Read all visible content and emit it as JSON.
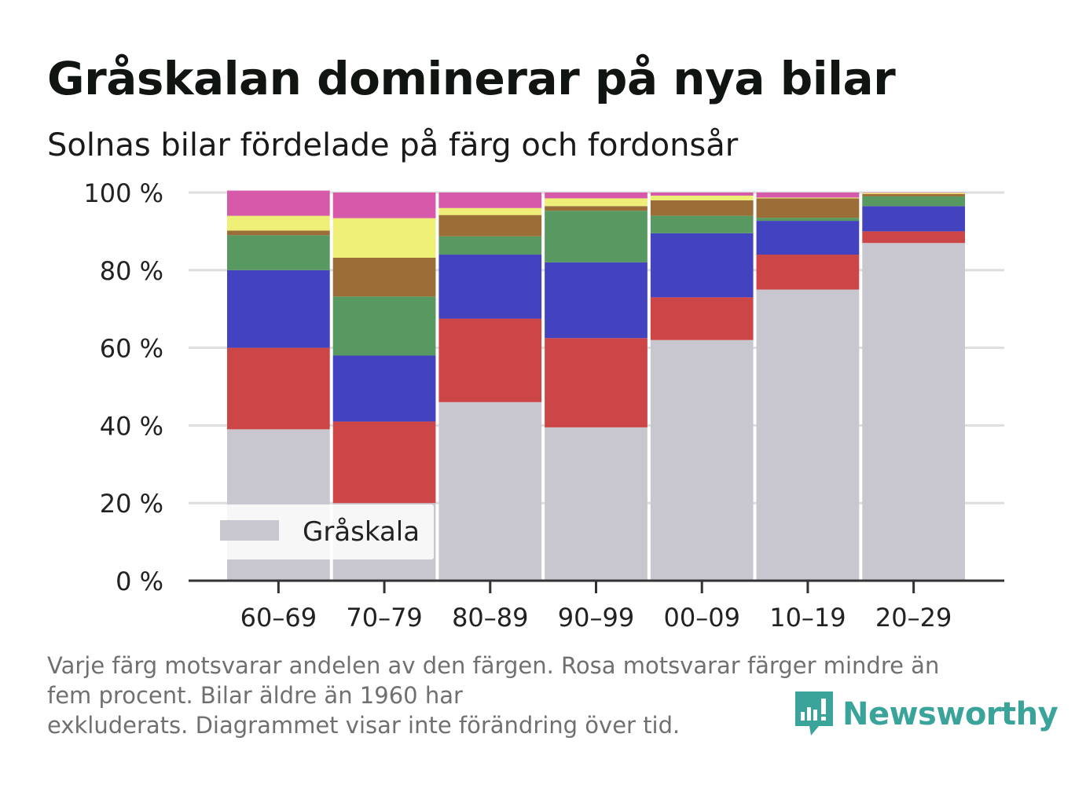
{
  "title": "Gråskalan dominerar på nya bilar",
  "subtitle": "Solnas bilar fördelade på färg och fordonsår",
  "footnote": {
    "line1": "Varje färg motsvarar andelen av den färgen. Rosa motsvarar färger mindre än",
    "line2": "fem procent. Bilar äldre än 1960 har",
    "line3": "exkluderats. Diagrammet visar inte förändring över tid."
  },
  "brand": {
    "name": "Newsworthy",
    "color": "#3aa39a",
    "icon": "newsworthy-logo-icon"
  },
  "chart_data": {
    "type": "bar",
    "stacked": true,
    "categories": [
      "60–69",
      "70–79",
      "80–89",
      "90–99",
      "00–09",
      "10–19",
      "20–29"
    ],
    "ylim": [
      0,
      100
    ],
    "yticks": [
      0,
      20,
      40,
      60,
      80,
      100
    ],
    "ytick_labels": [
      "0 %",
      "20 %",
      "40 %",
      "60 %",
      "80 %",
      "100 %"
    ],
    "grid": true,
    "legend": {
      "position": "bottom-left",
      "entries": [
        "Gråskala"
      ]
    },
    "series": [
      {
        "name": "Gråskala",
        "color": "#c8c7d0",
        "values": [
          39,
          20,
          46,
          39.5,
          62,
          75,
          87
        ]
      },
      {
        "color": "#cc4547",
        "values": [
          21,
          21,
          21.5,
          23,
          11,
          9,
          3
        ]
      },
      {
        "color": "#4443bf",
        "values": [
          20,
          17,
          16.5,
          19.5,
          16.5,
          8.7,
          6.5
        ]
      },
      {
        "color": "#589962",
        "values": [
          9,
          15.2,
          4.7,
          13.3,
          4.5,
          0.8,
          2.5
        ]
      },
      {
        "color": "#9a6e36",
        "values": [
          1.2,
          10,
          5.5,
          1.2,
          4,
          5,
          0.6
        ]
      },
      {
        "color": "#edef77",
        "values": [
          3.8,
          10.2,
          1.8,
          2,
          1.2,
          0.2,
          0.3
        ]
      },
      {
        "color": "#d65aa9",
        "values": [
          6.5,
          6.6,
          4,
          1.5,
          0.8,
          1.3,
          0.1
        ]
      }
    ]
  }
}
